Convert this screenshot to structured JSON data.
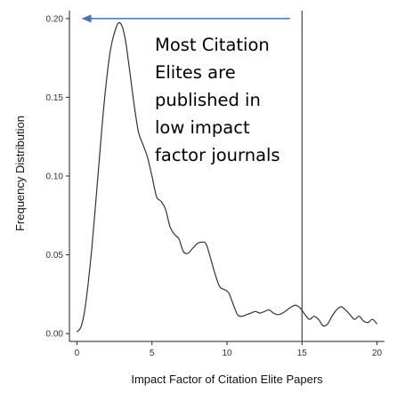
{
  "chart_data": {
    "type": "line",
    "title": "",
    "xlabel": "Impact Factor of Citation Elite Papers",
    "ylabel": "Frequency Distribution",
    "xlim": [
      -0.5,
      20.5
    ],
    "ylim": [
      -0.005,
      0.205
    ],
    "x_ticks": [
      0,
      5,
      10,
      15,
      20
    ],
    "y_ticks": [
      0.0,
      0.05,
      0.1,
      0.15,
      0.2
    ],
    "x_tick_labels": [
      "0",
      "5",
      "10",
      "15",
      "20"
    ],
    "y_tick_labels": [
      "0.00",
      "0.05",
      "0.10",
      "0.15",
      "0.20"
    ],
    "grid": false,
    "line_color": "#333333",
    "vline": {
      "x": 15,
      "color": "#444444"
    },
    "arrow": {
      "from": [
        14.2,
        0.2
      ],
      "to": [
        0.3,
        0.2
      ],
      "color": "#4472c4"
    },
    "annotation": {
      "lines": [
        "Most Citation",
        "Elites are",
        "published in",
        "low impact",
        "factor journals"
      ]
    },
    "series": [
      {
        "x": [
          0,
          0.3,
          0.6,
          1.0,
          1.4,
          1.8,
          2.2,
          2.6,
          2.9,
          3.2,
          3.5,
          3.8,
          4.1,
          4.4,
          4.7,
          5.0,
          5.3,
          5.6,
          5.9,
          6.2,
          6.5,
          6.8,
          7.1,
          7.4,
          7.7,
          8.0,
          8.3,
          8.6,
          8.9,
          9.2,
          9.5,
          9.8,
          10.1,
          10.4,
          10.7,
          11.0,
          11.3,
          11.6,
          11.9,
          12.2,
          12.5,
          12.8,
          13.1,
          13.4,
          13.7,
          14.0,
          14.3,
          14.6,
          14.9,
          15.2,
          15.5,
          15.8,
          16.1,
          16.4,
          16.7,
          17.0,
          17.3,
          17.6,
          17.9,
          18.2,
          18.5,
          18.8,
          19.1,
          19.4,
          19.7,
          20.0
        ],
        "y": [
          0.001,
          0.005,
          0.02,
          0.055,
          0.1,
          0.145,
          0.178,
          0.194,
          0.197,
          0.188,
          0.168,
          0.146,
          0.128,
          0.12,
          0.112,
          0.1,
          0.087,
          0.084,
          0.079,
          0.068,
          0.063,
          0.06,
          0.052,
          0.051,
          0.054,
          0.057,
          0.058,
          0.057,
          0.048,
          0.038,
          0.03,
          0.028,
          0.026,
          0.019,
          0.012,
          0.011,
          0.012,
          0.013,
          0.014,
          0.013,
          0.014,
          0.015,
          0.013,
          0.012,
          0.013,
          0.015,
          0.017,
          0.018,
          0.016,
          0.012,
          0.009,
          0.011,
          0.009,
          0.005,
          0.006,
          0.011,
          0.015,
          0.017,
          0.015,
          0.012,
          0.009,
          0.011,
          0.008,
          0.007,
          0.009,
          0.006
        ]
      }
    ]
  }
}
